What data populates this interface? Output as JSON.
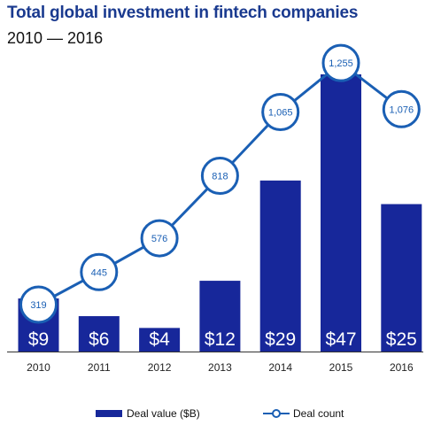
{
  "chart_data": {
    "type": "bar",
    "title": "Total global investment in fintech companies",
    "subtitle": "2010 — 2016",
    "categories": [
      "2010",
      "2011",
      "2012",
      "2013",
      "2014",
      "2015",
      "2016"
    ],
    "series": [
      {
        "name": "Deal value ($B)",
        "type": "bar",
        "values": [
          9,
          6,
          4,
          12,
          29,
          47,
          25
        ],
        "labels": [
          "$9",
          "$6",
          "$4",
          "$12",
          "$29",
          "$47",
          "$25"
        ]
      },
      {
        "name": "Deal count",
        "type": "line",
        "values": [
          319,
          445,
          576,
          818,
          1065,
          1255,
          1076
        ],
        "labels": [
          "319",
          "445",
          "576",
          "818",
          "1,065",
          "1,255",
          "1,076"
        ]
      }
    ],
    "bar_ylim": [
      0,
      50
    ],
    "line_ylim": [
      0,
      1300
    ],
    "grid": false,
    "legend_position": "bottom"
  },
  "colors": {
    "bar": "#17279a",
    "line": "#1a5fb4",
    "title": "#1a3a8f"
  }
}
